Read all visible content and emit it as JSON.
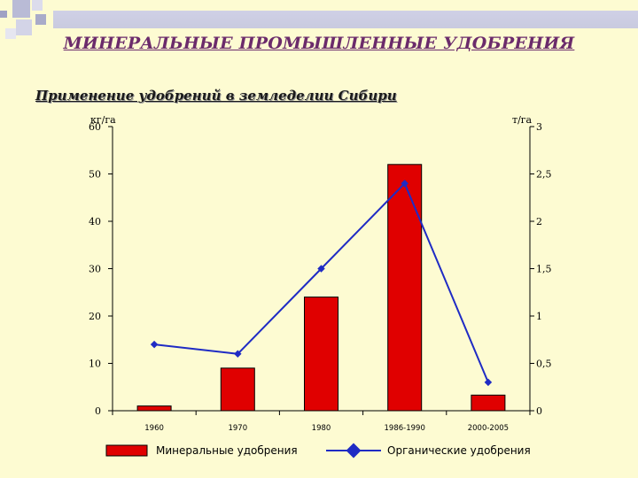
{
  "slide": {
    "title": "МИНЕРАЛЬНЫЕ ПРОМЫШЛЕННЫЕ УДОБРЕНИЯ",
    "subtitle": "Применение удобрений в земледелии Сибири"
  },
  "chart_data": {
    "type": "bar",
    "categories": [
      "1960",
      "1970",
      "1980",
      "1986-1990",
      "2000-2005"
    ],
    "series": [
      {
        "name": "Минеральные удобрения",
        "kind": "bar",
        "axis": "left",
        "color": "#e00000",
        "values": [
          1,
          9,
          24,
          52,
          3.3
        ]
      },
      {
        "name": "Органические удобрения",
        "kind": "line",
        "axis": "right",
        "color": "#1f2bc4",
        "values": [
          0.7,
          0.6,
          1.5,
          2.4,
          0.3
        ]
      }
    ],
    "y_left": {
      "label": "кг/га",
      "lim": [
        0,
        60
      ],
      "ticks": [
        "0",
        "10",
        "20",
        "30",
        "40",
        "50",
        "60"
      ]
    },
    "y_right": {
      "label": "т/га",
      "lim": [
        0,
        3
      ],
      "ticks": [
        "0",
        "0,5",
        "1",
        "1,5",
        "2",
        "2,5",
        "3"
      ]
    },
    "grid": false,
    "legend_position": "bottom"
  }
}
